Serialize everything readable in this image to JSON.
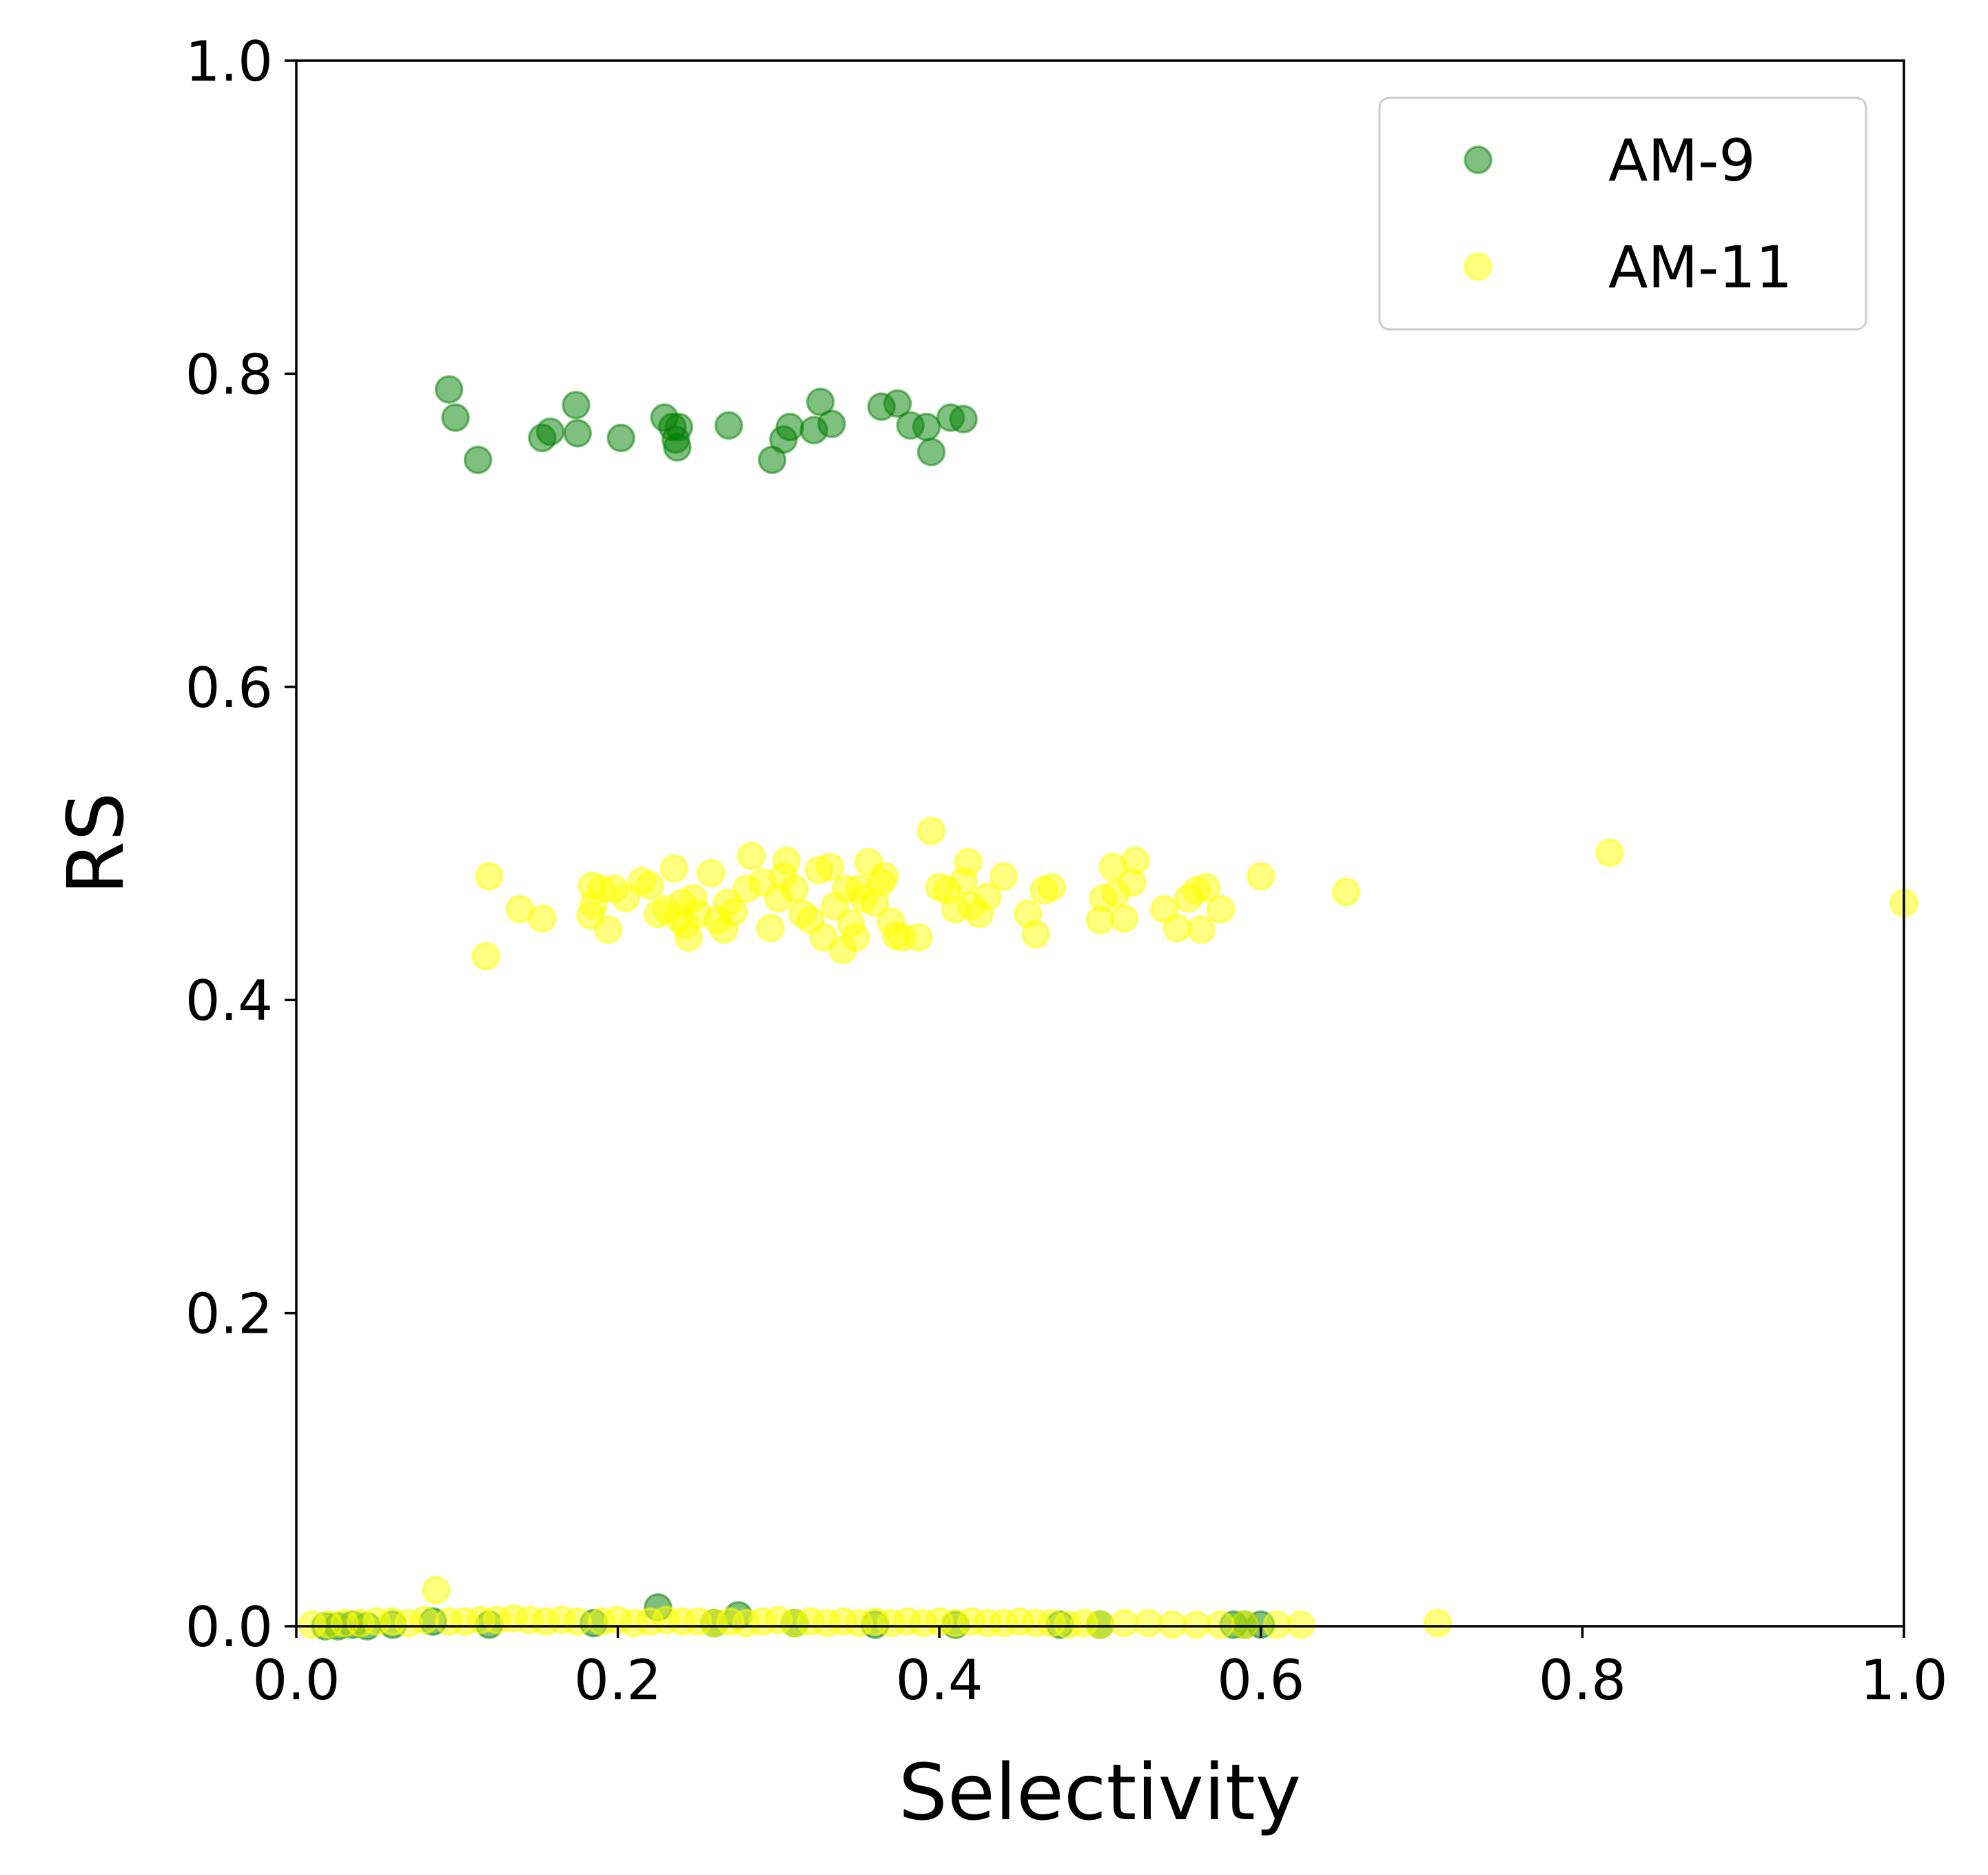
{
  "chart_data": {
    "type": "scatter",
    "title": "",
    "xlabel": "Selectivity",
    "ylabel": "RS",
    "xlim": [
      0.0,
      1.0
    ],
    "ylim": [
      0.0,
      1.0
    ],
    "xticks": [
      "0.0",
      "0.2",
      "0.4",
      "0.6",
      "0.8",
      "1.0"
    ],
    "yticks": [
      "0.0",
      "0.2",
      "0.4",
      "0.6",
      "0.8",
      "1.0"
    ],
    "grid": false,
    "legend": "top-right",
    "series": [
      {
        "name": "AM-9",
        "color": "#008000",
        "alpha": 0.5,
        "points": [
          [
            0.095,
            0.79
          ],
          [
            0.099,
            0.772
          ],
          [
            0.113,
            0.745
          ],
          [
            0.153,
            0.759
          ],
          [
            0.158,
            0.763
          ],
          [
            0.174,
            0.78
          ],
          [
            0.175,
            0.762
          ],
          [
            0.202,
            0.759
          ],
          [
            0.229,
            0.772
          ],
          [
            0.234,
            0.766
          ],
          [
            0.236,
            0.758
          ],
          [
            0.237,
            0.753
          ],
          [
            0.238,
            0.766
          ],
          [
            0.269,
            0.767
          ],
          [
            0.296,
            0.745
          ],
          [
            0.303,
            0.758
          ],
          [
            0.307,
            0.766
          ],
          [
            0.322,
            0.764
          ],
          [
            0.326,
            0.782
          ],
          [
            0.333,
            0.768
          ],
          [
            0.364,
            0.779
          ],
          [
            0.374,
            0.781
          ],
          [
            0.382,
            0.767
          ],
          [
            0.392,
            0.766
          ],
          [
            0.395,
            0.75
          ],
          [
            0.407,
            0.772
          ],
          [
            0.415,
            0.771
          ],
          [
            0.018,
            0.0
          ],
          [
            0.026,
            0.0
          ],
          [
            0.035,
            0.001
          ],
          [
            0.044,
            0.0
          ],
          [
            0.06,
            0.001
          ],
          [
            0.085,
            0.003
          ],
          [
            0.12,
            0.001
          ],
          [
            0.185,
            0.002
          ],
          [
            0.225,
            0.012
          ],
          [
            0.26,
            0.002
          ],
          [
            0.275,
            0.007
          ],
          [
            0.31,
            0.002
          ],
          [
            0.36,
            0.001
          ],
          [
            0.41,
            0.001
          ],
          [
            0.475,
            0.001
          ],
          [
            0.5,
            0.001
          ],
          [
            0.583,
            0.001
          ],
          [
            0.59,
            0.001
          ],
          [
            0.6,
            0.001
          ]
        ]
      },
      {
        "name": "AM-11",
        "color": "#FFFF00",
        "alpha": 0.5,
        "points": [
          [
            0.118,
            0.428
          ],
          [
            0.12,
            0.479
          ],
          [
            0.139,
            0.458
          ],
          [
            0.153,
            0.452
          ],
          [
            0.183,
            0.454
          ],
          [
            0.184,
            0.473
          ],
          [
            0.185,
            0.461
          ],
          [
            0.19,
            0.471
          ],
          [
            0.194,
            0.445
          ],
          [
            0.198,
            0.471
          ],
          [
            0.205,
            0.465
          ],
          [
            0.215,
            0.476
          ],
          [
            0.22,
            0.473
          ],
          [
            0.225,
            0.455
          ],
          [
            0.23,
            0.458
          ],
          [
            0.235,
            0.484
          ],
          [
            0.238,
            0.452
          ],
          [
            0.24,
            0.462
          ],
          [
            0.242,
            0.448
          ],
          [
            0.244,
            0.44
          ],
          [
            0.247,
            0.465
          ],
          [
            0.25,
            0.455
          ],
          [
            0.258,
            0.481
          ],
          [
            0.262,
            0.451
          ],
          [
            0.266,
            0.445
          ],
          [
            0.268,
            0.462
          ],
          [
            0.272,
            0.456
          ],
          [
            0.28,
            0.471
          ],
          [
            0.283,
            0.492
          ],
          [
            0.29,
            0.475
          ],
          [
            0.295,
            0.446
          ],
          [
            0.3,
            0.465
          ],
          [
            0.303,
            0.479
          ],
          [
            0.305,
            0.489
          ],
          [
            0.31,
            0.471
          ],
          [
            0.315,
            0.455
          ],
          [
            0.32,
            0.451
          ],
          [
            0.325,
            0.483
          ],
          [
            0.328,
            0.44
          ],
          [
            0.332,
            0.485
          ],
          [
            0.335,
            0.46
          ],
          [
            0.34,
            0.432
          ],
          [
            0.342,
            0.471
          ],
          [
            0.345,
            0.449
          ],
          [
            0.348,
            0.44
          ],
          [
            0.35,
            0.471
          ],
          [
            0.353,
            0.465
          ],
          [
            0.356,
            0.488
          ],
          [
            0.36,
            0.462
          ],
          [
            0.364,
            0.475
          ],
          [
            0.366,
            0.479
          ],
          [
            0.37,
            0.45
          ],
          [
            0.373,
            0.441
          ],
          [
            0.377,
            0.44
          ],
          [
            0.387,
            0.44
          ],
          [
            0.395,
            0.508
          ],
          [
            0.4,
            0.472
          ],
          [
            0.405,
            0.47
          ],
          [
            0.41,
            0.458
          ],
          [
            0.415,
            0.476
          ],
          [
            0.418,
            0.488
          ],
          [
            0.42,
            0.46
          ],
          [
            0.425,
            0.455
          ],
          [
            0.43,
            0.466
          ],
          [
            0.44,
            0.479
          ],
          [
            0.455,
            0.455
          ],
          [
            0.46,
            0.442
          ],
          [
            0.465,
            0.47
          ],
          [
            0.47,
            0.472
          ],
          [
            0.5,
            0.451
          ],
          [
            0.502,
            0.465
          ],
          [
            0.508,
            0.485
          ],
          [
            0.51,
            0.468
          ],
          [
            0.515,
            0.452
          ],
          [
            0.52,
            0.475
          ],
          [
            0.522,
            0.489
          ],
          [
            0.54,
            0.458
          ],
          [
            0.548,
            0.446
          ],
          [
            0.555,
            0.465
          ],
          [
            0.56,
            0.47
          ],
          [
            0.563,
            0.445
          ],
          [
            0.566,
            0.472
          ],
          [
            0.575,
            0.458
          ],
          [
            0.6,
            0.479
          ],
          [
            0.653,
            0.469
          ],
          [
            0.817,
            0.494
          ],
          [
            1.0,
            0.462
          ],
          [
            0.01,
            0.001
          ],
          [
            0.02,
            0.001
          ],
          [
            0.03,
            0.002
          ],
          [
            0.04,
            0.002
          ],
          [
            0.05,
            0.003
          ],
          [
            0.06,
            0.003
          ],
          [
            0.07,
            0.002
          ],
          [
            0.08,
            0.004
          ],
          [
            0.087,
            0.023
          ],
          [
            0.095,
            0.003
          ],
          [
            0.105,
            0.003
          ],
          [
            0.115,
            0.004
          ],
          [
            0.125,
            0.004
          ],
          [
            0.135,
            0.005
          ],
          [
            0.145,
            0.004
          ],
          [
            0.155,
            0.003
          ],
          [
            0.165,
            0.004
          ],
          [
            0.175,
            0.003
          ],
          [
            0.19,
            0.003
          ],
          [
            0.2,
            0.004
          ],
          [
            0.21,
            0.002
          ],
          [
            0.22,
            0.003
          ],
          [
            0.23,
            0.004
          ],
          [
            0.24,
            0.003
          ],
          [
            0.25,
            0.003
          ],
          [
            0.26,
            0.002
          ],
          [
            0.27,
            0.003
          ],
          [
            0.28,
            0.002
          ],
          [
            0.29,
            0.003
          ],
          [
            0.3,
            0.004
          ],
          [
            0.31,
            0.002
          ],
          [
            0.32,
            0.003
          ],
          [
            0.33,
            0.002
          ],
          [
            0.34,
            0.003
          ],
          [
            0.35,
            0.002
          ],
          [
            0.36,
            0.003
          ],
          [
            0.37,
            0.002
          ],
          [
            0.38,
            0.003
          ],
          [
            0.39,
            0.002
          ],
          [
            0.4,
            0.003
          ],
          [
            0.41,
            0.002
          ],
          [
            0.42,
            0.003
          ],
          [
            0.43,
            0.002
          ],
          [
            0.44,
            0.002
          ],
          [
            0.45,
            0.003
          ],
          [
            0.46,
            0.002
          ],
          [
            0.47,
            0.002
          ],
          [
            0.48,
            0.001
          ],
          [
            0.49,
            0.002
          ],
          [
            0.5,
            0.001
          ],
          [
            0.515,
            0.002
          ],
          [
            0.53,
            0.002
          ],
          [
            0.545,
            0.001
          ],
          [
            0.56,
            0.001
          ],
          [
            0.575,
            0.001
          ],
          [
            0.59,
            0.001
          ],
          [
            0.61,
            0.001
          ],
          [
            0.625,
            0.001
          ],
          [
            0.71,
            0.002
          ]
        ]
      }
    ]
  }
}
